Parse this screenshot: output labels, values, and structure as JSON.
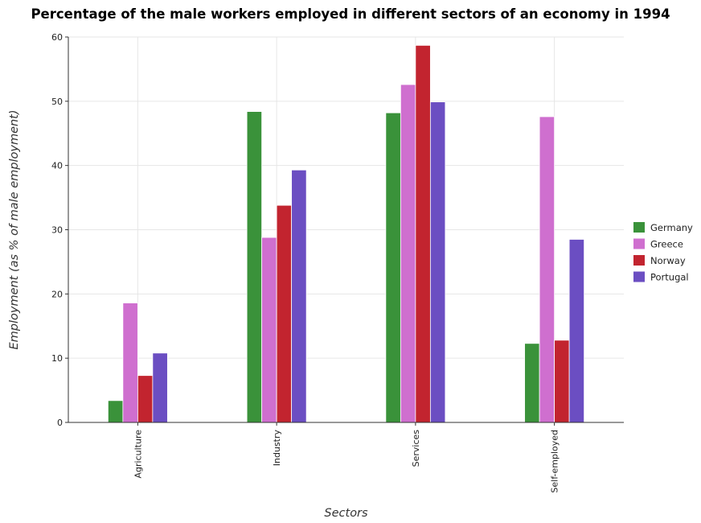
{
  "chart_data": {
    "type": "bar",
    "title": "Percentage of the male workers employed in different sectors of an economy in 1994",
    "xlabel": "Sectors",
    "ylabel": "Employment (as % of male employment)",
    "categories": [
      "Agriculture",
      "Industry",
      "Services",
      "Self-employed"
    ],
    "ylim": [
      0,
      60
    ],
    "yticks": [
      0,
      10,
      20,
      30,
      40,
      50,
      60
    ],
    "grid": true,
    "legend_position": "right",
    "series": [
      {
        "name": "Germany",
        "color": "#3a923a",
        "values": [
          3.4,
          48.4,
          48.2,
          12.3
        ]
      },
      {
        "name": "Greece",
        "color": "#cf6fcf",
        "values": [
          18.6,
          28.8,
          52.6,
          47.6
        ]
      },
      {
        "name": "Norway",
        "color": "#c2242f",
        "values": [
          7.3,
          33.8,
          58.7,
          12.8
        ]
      },
      {
        "name": "Portugal",
        "color": "#6b4ec2",
        "values": [
          10.8,
          39.3,
          49.9,
          28.5
        ]
      }
    ]
  }
}
